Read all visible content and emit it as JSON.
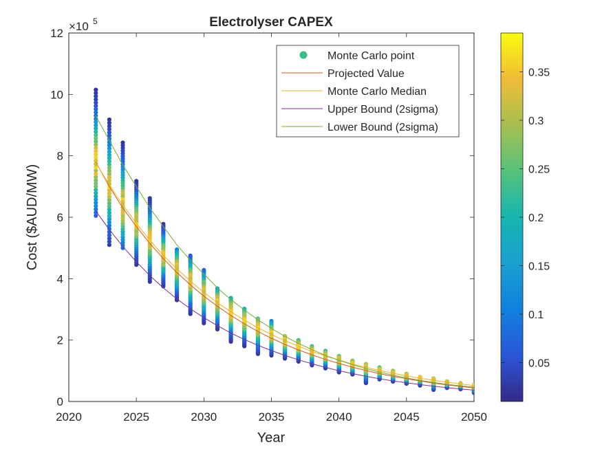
{
  "chart_data": {
    "type": "scatter",
    "title": "Electrolyser CAPEX",
    "xlabel": "Year",
    "ylabel": "Cost ($AUD/MW)",
    "y_exponent_label": "×10",
    "y_exponent_power": "5",
    "xlim": [
      2020,
      2050
    ],
    "ylim": [
      0,
      1200000
    ],
    "xticks": [
      2020,
      2025,
      2030,
      2035,
      2040,
      2045,
      2050
    ],
    "yticks": [
      0,
      200000,
      400000,
      600000,
      800000,
      1000000,
      1200000
    ],
    "ytick_labels": [
      "0",
      "2",
      "4",
      "6",
      "8",
      "10",
      "12"
    ],
    "grid": false,
    "legend_position": "top-right",
    "legend": [
      {
        "label": "Monte Carlo point",
        "kind": "marker",
        "color": "#35C08A"
      },
      {
        "label": "Projected Value",
        "kind": "line",
        "color": "#D95319"
      },
      {
        "label": "Monte Carlo Median",
        "kind": "line",
        "color": "#EDB120"
      },
      {
        "label": "Upper Bound (2sigma)",
        "kind": "line",
        "color": "#7E2F8E"
      },
      {
        "label": "Lower Bound (2sigma)",
        "kind": "line",
        "color": "#77AC30"
      }
    ],
    "colorbar": {
      "colormap": "parula",
      "range": [
        0.01,
        0.39
      ],
      "ticks": [
        0.05,
        0.1,
        0.15,
        0.2,
        0.25,
        0.3,
        0.35
      ],
      "tick_labels": [
        "0.05",
        "0.1",
        "0.15",
        "0.2",
        "0.25",
        "0.3",
        "0.35"
      ]
    },
    "years": [
      2022,
      2023,
      2024,
      2025,
      2026,
      2027,
      2028,
      2029,
      2030,
      2031,
      2032,
      2033,
      2034,
      2035,
      2036,
      2037,
      2038,
      2039,
      2040,
      2041,
      2042,
      2043,
      2044,
      2045,
      2046,
      2047,
      2048,
      2049,
      2050
    ],
    "series": [
      {
        "name": "Projected Value",
        "values": [
          780000,
          700000,
          630000,
          570000,
          515000,
          465000,
          420000,
          380000,
          343000,
          310000,
          280000,
          253000,
          228000,
          206000,
          186000,
          168000,
          152000,
          137000,
          124000,
          112000,
          101000,
          91000,
          82000,
          74000,
          67000,
          60000,
          54000,
          49000,
          44000
        ]
      },
      {
        "name": "Monte Carlo Median",
        "values": [
          778000,
          705000,
          640000,
          580000,
          525000,
          476000,
          432000,
          392000,
          355000,
          322000,
          292000,
          265000,
          240000,
          218000,
          198000,
          180000,
          163000,
          148000,
          135000,
          122000,
          111000,
          101000,
          92000,
          83000,
          76000,
          69000,
          63000,
          57000,
          52000
        ]
      },
      {
        "name": "Upper Bound (2sigma)",
        "values": [
          620000,
          560000,
          505000,
          455000,
          410000,
          370000,
          334000,
          302000,
          273000,
          247000,
          223000,
          202000,
          183000,
          166000,
          150000,
          136000,
          123000,
          111000,
          100000,
          91000,
          82000,
          74000,
          67000,
          61000,
          55000,
          50000,
          45000,
          41000,
          37000
        ]
      },
      {
        "name": "Lower Bound (2sigma)",
        "values": [
          930000,
          850000,
          770000,
          700000,
          630000,
          570000,
          510000,
          460000,
          415000,
          370000,
          332000,
          298000,
          266000,
          238000,
          212000,
          189000,
          169000,
          150000,
          134000,
          120000,
          107000,
          96000,
          86000,
          77000,
          69000,
          62000,
          56000,
          51000,
          47000
        ]
      }
    ],
    "monte_carlo_spread": {
      "min": [
        605000,
        510000,
        500000,
        445000,
        390000,
        375000,
        330000,
        285000,
        255000,
        235000,
        195000,
        180000,
        155000,
        150000,
        140000,
        130000,
        118000,
        108000,
        95000,
        88000,
        60000,
        72000,
        65000,
        58000,
        52000,
        38000,
        44000,
        40000,
        28000
      ],
      "max": [
        1015000,
        918000,
        843000,
        718000,
        662000,
        578000,
        495000,
        475000,
        428000,
        368000,
        337000,
        302000,
        270000,
        262000,
        213000,
        200000,
        180000,
        165000,
        148000,
        133000,
        122000,
        111000,
        100000,
        90000,
        80000,
        75000,
        66000,
        60000,
        55000
      ]
    }
  }
}
